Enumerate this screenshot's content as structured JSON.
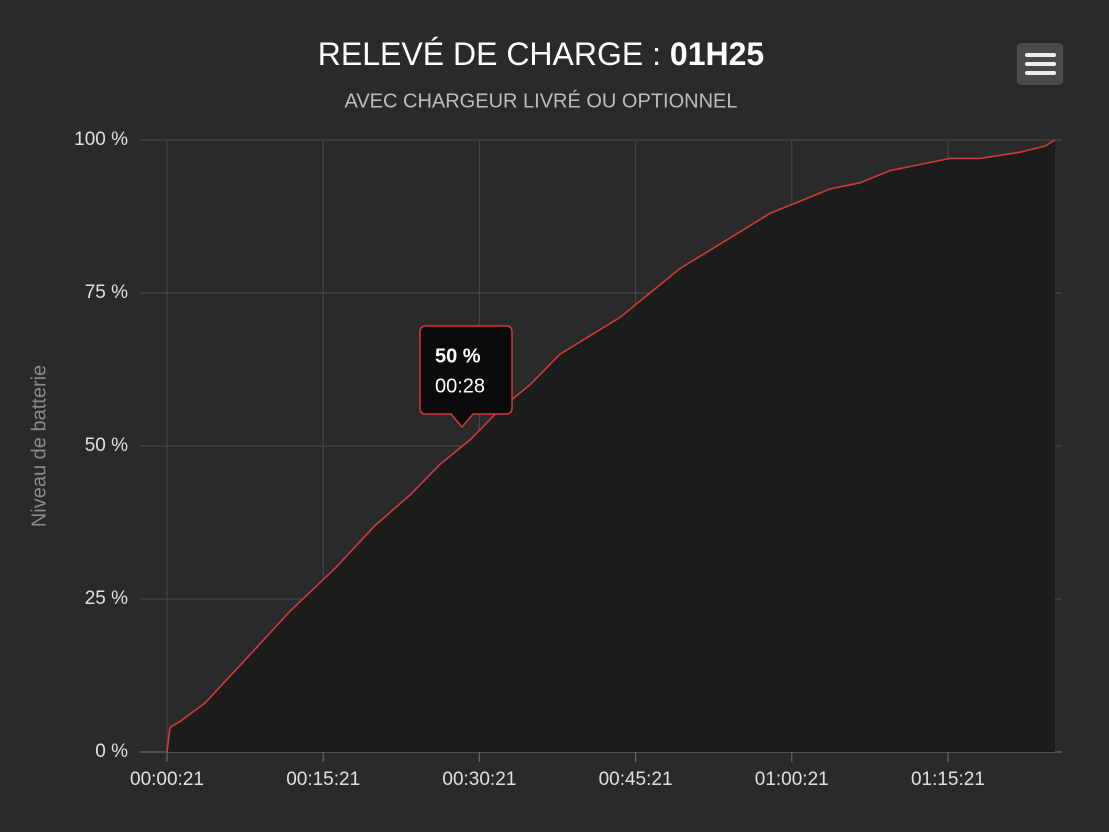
{
  "chart_data": {
    "type": "area",
    "title": "RELEVÉ DE CHARGE : ",
    "title_emphasis": "01H25",
    "subtitle": "AVEC CHARGEUR LIVRÉ OU OPTIONNEL",
    "y_label": "Niveau de batterie",
    "color": "#d03a3a",
    "x": [
      21,
      38,
      96,
      240,
      470,
      730,
      989,
      1219,
      1421,
      1594,
      1767,
      1940,
      2113,
      2285,
      2458,
      2631,
      2804,
      2977,
      3150,
      3323,
      3495,
      3668,
      3841,
      4014,
      4187,
      4360,
      4533,
      4705,
      4936,
      5080,
      5138
    ],
    "values": [
      0,
      4,
      5,
      8,
      15,
      23,
      30,
      37,
      42,
      47,
      51,
      56,
      60,
      65,
      68,
      71,
      75,
      79,
      82,
      85,
      88,
      90,
      92,
      93,
      95,
      96,
      97,
      97,
      98,
      99,
      100
    ],
    "xlim": [
      21,
      5138
    ],
    "xticks": [
      {
        "value": 21,
        "label": "00:00:21"
      },
      {
        "value": 921,
        "label": "00:15:21"
      },
      {
        "value": 1821,
        "label": "00:30:21"
      },
      {
        "value": 2721,
        "label": "00:45:21"
      },
      {
        "value": 3621,
        "label": "01:00:21"
      },
      {
        "value": 4521,
        "label": "01:15:21"
      }
    ],
    "ylim": [
      0,
      100
    ],
    "yticks": [
      {
        "value": 0,
        "label": "0 %"
      },
      {
        "value": 25,
        "label": "25 %"
      },
      {
        "value": 50,
        "label": "50 %"
      },
      {
        "value": 75,
        "label": "75 %"
      },
      {
        "value": 100,
        "label": "100 %"
      }
    ],
    "grid": true,
    "tooltip": {
      "value": "50 %",
      "time": "00:28"
    }
  }
}
